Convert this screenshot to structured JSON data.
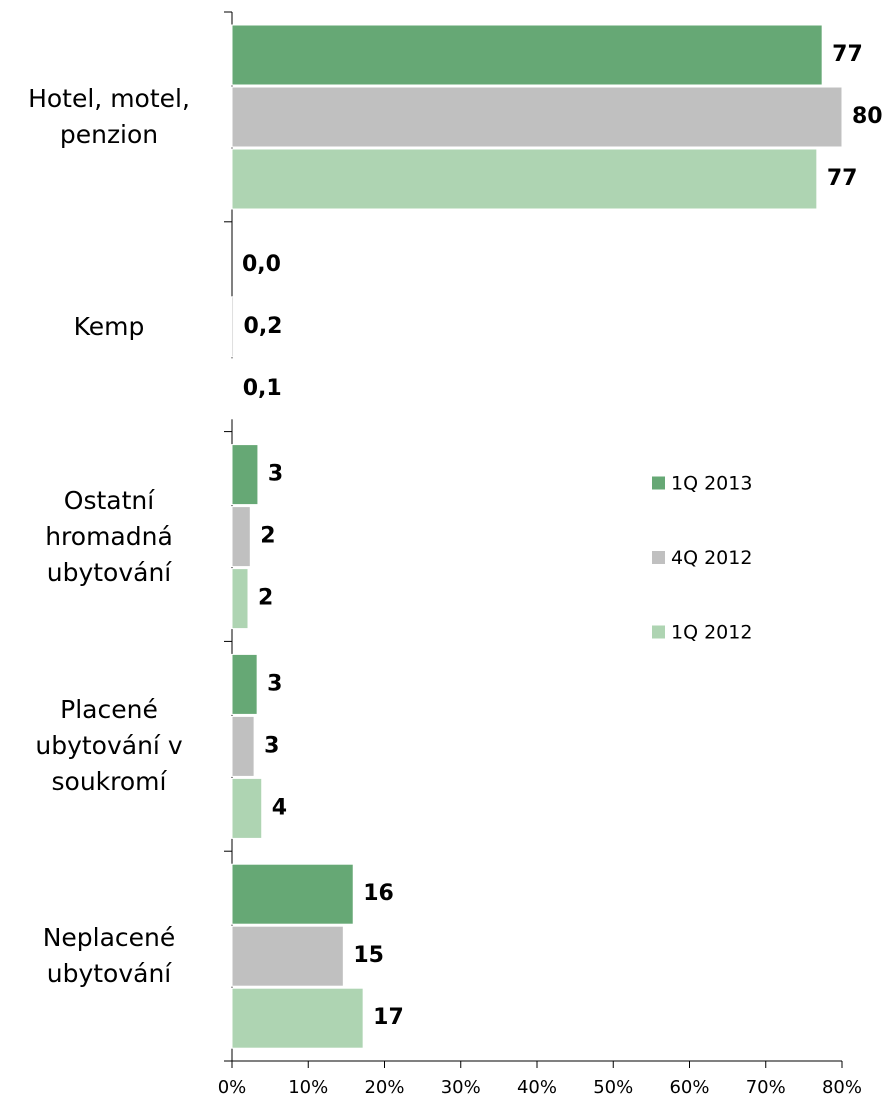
{
  "chart_data": {
    "type": "bar",
    "orientation": "horizontal",
    "categories": [
      "Hotel, motel, penzion",
      "Kemp",
      "Ostatní hromadná ubytování",
      "Placené ubytování v soukromí",
      "Neplacené ubytování"
    ],
    "series": [
      {
        "name": "1Q 2013",
        "color": "#66a875",
        "values": [
          77.4,
          0.0,
          3.4,
          3.3,
          15.9
        ],
        "value_labels": [
          "77",
          "0,0",
          "3",
          "3",
          "16"
        ]
      },
      {
        "name": "4Q 2012",
        "color": "#c0c0c0",
        "values": [
          80,
          0.2,
          2.4,
          2.9,
          14.6
        ],
        "value_labels": [
          "80",
          "0,2",
          "2",
          "3",
          "15"
        ]
      },
      {
        "name": "1Q 2012",
        "color": "#aed4b2",
        "values": [
          76.7,
          0.1,
          2.1,
          3.9,
          17.2
        ],
        "value_labels": [
          "77",
          "0,1",
          "2",
          "4",
          "17"
        ]
      }
    ],
    "xlim": [
      0,
      80
    ],
    "xticks": [
      {
        "value": 0,
        "label": "0%"
      },
      {
        "value": 10,
        "label": "10%"
      },
      {
        "value": 20,
        "label": "20%"
      },
      {
        "value": 30,
        "label": "30%"
      },
      {
        "value": 40,
        "label": "40%"
      },
      {
        "value": 50,
        "label": "50%"
      },
      {
        "value": 60,
        "label": "60%"
      },
      {
        "value": 70,
        "label": "70%"
      },
      {
        "value": 80,
        "label": "80%"
      }
    ],
    "legend": "right"
  }
}
